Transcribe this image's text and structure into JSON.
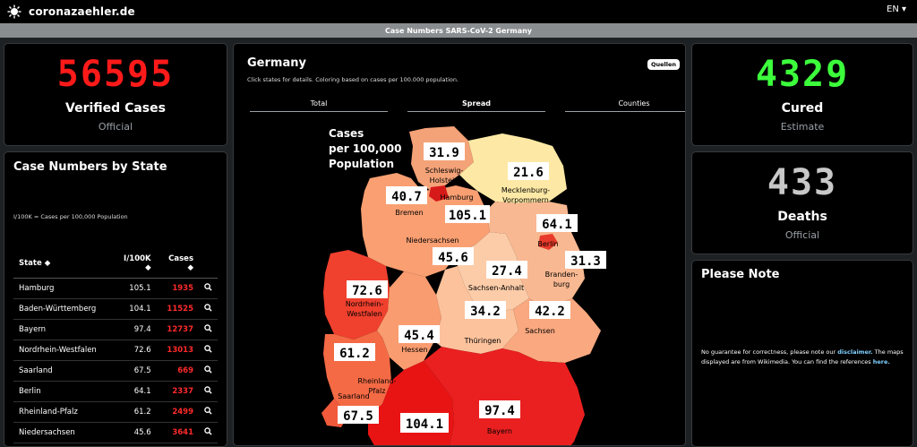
{
  "header": {
    "site_name": "coronazaehler.de",
    "lang": "EN ▾",
    "subtitle": "Case Numbers SARS-CoV-2 Germany"
  },
  "verified": {
    "value": "56595",
    "label": "Verified Cases",
    "sub": "Official",
    "color": "#ff1a1a"
  },
  "cured": {
    "value": "4329",
    "label": "Cured",
    "sub": "Estimate",
    "color": "#3cff3c"
  },
  "deaths": {
    "value": "433",
    "label": "Deaths",
    "sub": "Official",
    "color": "#c8c8c8"
  },
  "by_state": {
    "title": "Case Numbers by State",
    "legend": "I/100K = Cases per 100,000 Population",
    "headers": {
      "state": "State ◆",
      "per100k": "I/100K ◆",
      "cases": "Cases ◆"
    },
    "rows": [
      {
        "state": "Hamburg",
        "per100k": "105.1",
        "cases": "1935"
      },
      {
        "state": "Baden-Württemberg",
        "per100k": "104.1",
        "cases": "11525"
      },
      {
        "state": "Bayern",
        "per100k": "97.4",
        "cases": "12737"
      },
      {
        "state": "Nordrhein-Westfalen",
        "per100k": "72.6",
        "cases": "13013"
      },
      {
        "state": "Saarland",
        "per100k": "67.5",
        "cases": "669"
      },
      {
        "state": "Berlin",
        "per100k": "64.1",
        "cases": "2337"
      },
      {
        "state": "Rheinland-Pfalz",
        "per100k": "61.2",
        "cases": "2499"
      },
      {
        "state": "Niedersachsen",
        "per100k": "45.6",
        "cases": "3641"
      }
    ]
  },
  "germany": {
    "title": "Germany",
    "sources_button": "Quellen",
    "description": "Click states for details. Coloring based on cases per 100.000 population.",
    "tabs": [
      {
        "label": "Total"
      },
      {
        "label": "Spread"
      },
      {
        "label": "Counties"
      }
    ],
    "map_title_1": "Cases",
    "map_title_2": "per 100,000",
    "map_title_3": "Population",
    "states": {
      "sh": {
        "name1": "Schleswig-",
        "name2": "Holstein",
        "value": "31.9"
      },
      "hh": {
        "name1": "Hamburg",
        "value": "105.1"
      },
      "mv": {
        "name1": "Mecklenburg-",
        "name2": "Vorpommern",
        "value": "21.6"
      },
      "hb": {
        "name1": "Bremen",
        "value": "40.7"
      },
      "ni": {
        "name1": "Niedersachsen",
        "value": "45.6"
      },
      "be": {
        "name1": "Berlin",
        "value": "64.1"
      },
      "bb": {
        "name1": "Branden-",
        "name2": "burg",
        "value": "31.3"
      },
      "st": {
        "name1": "Sachsen-Anhalt",
        "value": "27.4"
      },
      "nw": {
        "name1": "Nordrhein-",
        "name2": "Westfalen",
        "value": "72.6"
      },
      "he": {
        "name1": "Hessen",
        "value": "45.4"
      },
      "th": {
        "name1": "Thüringen",
        "value": "34.2"
      },
      "sn": {
        "name1": "Sachsen",
        "value": "42.2"
      },
      "rp": {
        "name1": "Rheinland-",
        "name2": "Pfalz",
        "value": "61.2"
      },
      "sl": {
        "name1": "Saarland",
        "value": "67.5"
      },
      "bw": {
        "value": "104.1"
      },
      "by": {
        "name1": "Bayern",
        "value": "97.4"
      }
    }
  },
  "note": {
    "title": "Please Note",
    "text_1": "No guarantee for correctness, please note our ",
    "link_1": "disclaimer.",
    "text_2": " The maps displayed are from Wikimedia. You can find the references ",
    "link_2": "here."
  }
}
